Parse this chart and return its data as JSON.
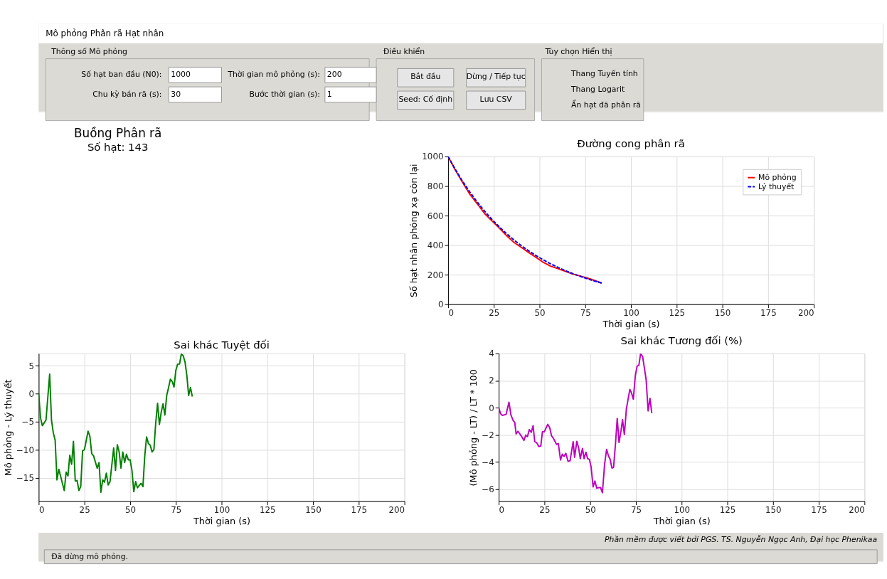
{
  "chart_data": [
    {
      "type": "other",
      "title": "Mô phỏng Phân rã Hạt nhân",
      "annotations": [
        "Thông số Mô phỏng",
        "Số hạt ban đầu (N0):",
        "1000",
        "Thời gian mô phỏng (s):",
        "200",
        "Chu kỳ bán rã (s):",
        "30",
        "Bước thời gian (s):",
        "1",
        "Điều khiển",
        "Bắt đầu",
        "Dừng / Tiếp tục",
        "Seed: Cố định",
        "Lưu CSV",
        "Tùy chọn Hiển thị",
        "Thang Tuyến tính",
        "Thang Logarit",
        "Ẩn hạt đã phân rã"
      ]
    },
    {
      "type": "other",
      "title": "Buồng Phân rã",
      "subtitle": "Số hạt: 143"
    },
    {
      "type": "line",
      "title": "Đường cong phân rã",
      "xlabel": "Thời gian (s)",
      "ylabel": "Số hạt nhân phóng xạ còn lại",
      "x": [
        0,
        4,
        8,
        12,
        16,
        20,
        24,
        28,
        32,
        36,
        40,
        44,
        48,
        52,
        56,
        60,
        64,
        68,
        72,
        76,
        80,
        84
      ],
      "xlim": [
        0,
        200
      ],
      "xticks": [
        0,
        25,
        50,
        75,
        100,
        125,
        150,
        175,
        200
      ],
      "ylim": [
        0,
        1000
      ],
      "yticks": [
        0,
        200,
        400,
        600,
        800,
        1000
      ],
      "grid": true,
      "legend": "top right",
      "series": [
        {
          "name": "Mô phỏng",
          "color": "#ff0000",
          "line_style": "solid",
          "values": [
            1000,
            907,
            823,
            743,
            679,
            614,
            564,
            516,
            464,
            419,
            385,
            351,
            318,
            284,
            258,
            241,
            223,
            205,
            192,
            178,
            161,
            143
          ]
        },
        {
          "name": "Lý thuyết",
          "color": "#0000ff",
          "line_style": "dashed",
          "values": [
            1000,
            912,
            831,
            758,
            691,
            630,
            574,
            524,
            477,
            435,
            397,
            362,
            330,
            301,
            274,
            250,
            228,
            208,
            190,
            173,
            157,
            144
          ]
        }
      ]
    },
    {
      "type": "line",
      "title": "Sai khác Tuyệt đối",
      "xlabel": "Thời gian (s)",
      "ylabel": "Mô phỏng - Lý thuyết",
      "xlim": [
        0,
        200
      ],
      "xticks": [
        0,
        25,
        50,
        75,
        100,
        125,
        150,
        175,
        200
      ],
      "ylim": [
        -19.2,
        7.2
      ],
      "yticks": [
        -15,
        -10,
        -5,
        0,
        5
      ],
      "grid": true,
      "series": [
        {
          "color": "#008000",
          "line_style": "solid",
          "x": [
            0,
            1,
            2,
            4,
            6,
            7,
            8,
            9,
            10,
            11,
            14,
            15,
            16,
            17,
            18,
            19,
            20,
            21,
            22,
            23,
            24,
            25,
            27,
            28,
            29,
            30,
            32,
            33,
            34,
            35,
            36,
            37,
            38,
            39,
            41,
            42,
            43,
            44,
            45,
            46,
            47,
            48,
            49,
            50,
            51,
            52,
            53,
            54,
            56,
            57,
            58,
            59,
            60,
            61,
            62,
            63,
            64,
            65,
            66,
            67,
            68,
            69,
            70,
            71,
            72,
            73,
            74,
            75,
            76,
            77,
            78,
            79,
            80,
            81,
            82,
            83,
            84
          ],
          "values": [
            0,
            -4.3,
            -5.7,
            -4.7,
            3.5,
            -4.7,
            -7,
            -8.3,
            -15.4,
            -13.5,
            -17.3,
            -14,
            -14.7,
            -11,
            -12.6,
            -8.5,
            -15.6,
            -15.5,
            -17.3,
            -16.6,
            -10.2,
            -10,
            -6.7,
            -7.6,
            -10.7,
            -11.1,
            -13.3,
            -12.3,
            -17.6,
            -15.4,
            -15.8,
            -14.2,
            -16.3,
            -15.7,
            -9.7,
            -13.7,
            -9.1,
            -10.4,
            -13.3,
            -10.4,
            -12.3,
            -10.8,
            -11.8,
            -11.8,
            -13.7,
            -17.5,
            -15.7,
            -16.8,
            -16,
            -16.6,
            -11.1,
            -7.7,
            -8.9,
            -9.2,
            -10.4,
            -10,
            -5.2,
            -1.7,
            -5.5,
            -3.3,
            -1.8,
            -3.8,
            -0.3,
            1.1,
            2.6,
            2.2,
            1.2,
            4.2,
            5.3,
            5.3,
            7.1,
            6.8,
            5.7,
            3.3,
            -0.3,
            1.1,
            -0.5
          ]
        }
      ]
    },
    {
      "type": "line",
      "title": "Sai khác Tương đối (%)",
      "xlabel": "Thời gian (s)",
      "ylabel": "(Mô phỏng - LT) / LT * 100",
      "xlim": [
        0,
        200
      ],
      "xticks": [
        0,
        25,
        50,
        75,
        100,
        125,
        150,
        175,
        200
      ],
      "ylim": [
        -6.9,
        4.0
      ],
      "yticks": [
        -6,
        -4,
        -2,
        0,
        2,
        4
      ],
      "grid": true,
      "series": [
        {
          "color": "#bf00bf",
          "line_style": "solid",
          "x": [
            0,
            1,
            2,
            4,
            5.6,
            6.7,
            7.9,
            8.8,
            9.5,
            10.5,
            12.6,
            13.8,
            14.8,
            15.7,
            16.7,
            17.8,
            18.8,
            19.7,
            20.7,
            21.9,
            23,
            23.9,
            24.9,
            26.8,
            27.9,
            28.9,
            30,
            31.6,
            32.6,
            33.8,
            34.8,
            35.7,
            36.7,
            37.9,
            39,
            40.7,
            41.5,
            42.7,
            43.7,
            44.6,
            45.8,
            46.7,
            47.7,
            48.6,
            49.6,
            50.5,
            51.6,
            52.6,
            53.6,
            54.7,
            55.7,
            56.7,
            57.9,
            59,
            60,
            60.9,
            61.9,
            62.8,
            63.9,
            64.8,
            65.8,
            66.9,
            67.7,
            68.7,
            69.8,
            70.7,
            71.7,
            72.6,
            73.6,
            74.7,
            75.7,
            76.6,
            77.6,
            78.7,
            79.6,
            80.6,
            81.7,
            82.7,
            83.7
          ],
          "values": [
            0,
            -0.44,
            -0.57,
            -0.5,
            0.4,
            -0.55,
            -0.95,
            -1.1,
            -1.94,
            -1.74,
            -2.14,
            -2.42,
            -2.02,
            -2.14,
            -1.62,
            -1.82,
            -1.33,
            -2.51,
            -2.57,
            -2.87,
            -2.83,
            -1.78,
            -1.78,
            -1.23,
            -1.49,
            -2.08,
            -2.28,
            -2.71,
            -2.65,
            -3.86,
            -3.43,
            -3.6,
            -3.37,
            -3.96,
            -3.92,
            -2.51,
            -3.66,
            -2.48,
            -2.97,
            -3.76,
            -3.01,
            -3.76,
            -3.29,
            -3.76,
            -3.82,
            -4.36,
            -5.84,
            -5.41,
            -5.94,
            -5.9,
            -5.9,
            -6.28,
            -4.16,
            -3.07,
            -3.56,
            -3.8,
            -4.46,
            -4.4,
            -2.57,
            -0.79,
            -2.57,
            -1.68,
            -0.89,
            -1.98,
            -0.1,
            0.59,
            1.35,
            1.09,
            0.63,
            2.38,
            3.07,
            3.11,
            4.0,
            3.76,
            2.97,
            2.08,
            -0.24,
            0.69,
            -0.4
          ]
        }
      ]
    },
    {
      "type": "other",
      "annotations": [
        "Phần mềm được viết bởi PGS. TS. Nguyễn Ngọc Anh, Đại học Phenikaa",
        "Đã dừng mô phỏng."
      ]
    }
  ]
}
